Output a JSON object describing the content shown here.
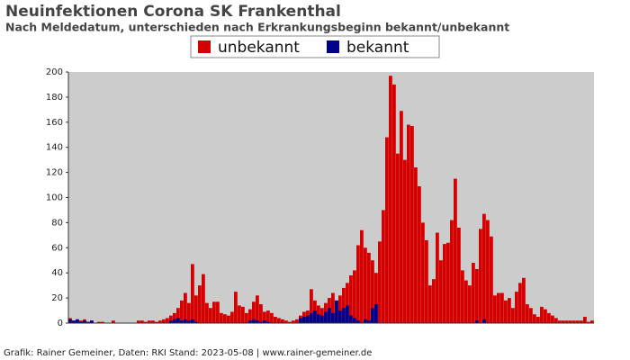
{
  "chart_data": {
    "type": "bar",
    "title": "Neuinfektionen Corona SK Frankenthal",
    "subtitle": "Nach Meldedatum, unterschieden nach Erkrankungsbeginn bekannt/unbekannt",
    "footer": "Grafik: Rainer Gemeiner, Daten: RKI Stand: 2023-05-08 | www.rainer-gemeiner.de",
    "legend": "top",
    "categories": [
      null,
      null,
      null,
      null,
      null,
      null,
      null,
      null,
      null,
      null,
      null,
      null,
      null,
      null,
      null,
      null,
      null,
      null,
      null,
      null,
      null,
      null,
      null,
      null,
      null,
      null,
      null,
      null,
      null,
      null,
      null,
      null,
      null,
      null,
      null,
      null,
      null,
      null,
      null,
      null,
      null,
      null,
      null,
      null,
      null,
      null,
      null,
      null,
      null,
      null,
      null,
      null,
      null,
      null,
      null,
      null,
      null,
      null,
      null,
      null,
      null,
      null,
      null,
      null,
      null,
      null,
      null,
      null,
      null,
      null,
      null,
      null,
      null,
      null,
      null,
      null,
      null,
      null,
      null,
      null,
      null,
      null,
      null,
      null,
      null,
      null,
      null,
      null,
      null,
      null,
      null,
      null,
      null,
      null,
      null,
      null,
      null,
      null,
      null,
      null,
      null,
      null,
      null,
      null,
      null,
      null,
      null,
      null,
      null,
      null,
      null,
      null,
      null,
      null,
      null,
      null,
      null,
      null,
      null,
      null,
      null,
      null,
      null,
      null,
      null,
      null,
      null,
      null,
      null,
      null,
      null,
      null,
      null,
      null,
      null,
      null,
      null,
      null,
      null,
      null,
      null,
      null,
      null,
      null,
      null,
      null
    ],
    "series": [
      {
        "name": "unbekannt",
        "color": "#d40000",
        "values": [
          4,
          2,
          3,
          2,
          3,
          1,
          2,
          0,
          1,
          1,
          0,
          0,
          2,
          0,
          0,
          0,
          0,
          0,
          0,
          2,
          2,
          1,
          2,
          2,
          1,
          2,
          3,
          4,
          6,
          8,
          12,
          18,
          24,
          16,
          47,
          22,
          30,
          39,
          16,
          12,
          17,
          17,
          8,
          7,
          6,
          9,
          25,
          14,
          13,
          8,
          11,
          17,
          22,
          15,
          9,
          10,
          8,
          5,
          4,
          3,
          2,
          1,
          2,
          3,
          6,
          9,
          10,
          27,
          18,
          14,
          12,
          16,
          20,
          24,
          18,
          22,
          28,
          32,
          38,
          42,
          62,
          74,
          60,
          56,
          50,
          40,
          65,
          90,
          148,
          197,
          190,
          135,
          169,
          130,
          158,
          157,
          124,
          109,
          80,
          66,
          30,
          35,
          72,
          50,
          63,
          64,
          82,
          115,
          76,
          42,
          34,
          30,
          48,
          43,
          75,
          87,
          82,
          69,
          22,
          24,
          24,
          18,
          20,
          12,
          25,
          32,
          36,
          15,
          12,
          7,
          5,
          13,
          11,
          8,
          6,
          4,
          2,
          2,
          2,
          2,
          2,
          2,
          2,
          5,
          1,
          2
        ]
      },
      {
        "name": "bekannt",
        "color": "#00008b",
        "values": [
          3,
          2,
          3,
          1,
          2,
          1,
          2,
          0,
          0,
          0,
          0,
          0,
          0,
          0,
          0,
          0,
          0,
          0,
          0,
          0,
          0,
          0,
          0,
          0,
          0,
          0,
          0,
          0,
          2,
          3,
          4,
          2,
          3,
          2,
          3,
          1,
          0,
          0,
          0,
          0,
          0,
          0,
          0,
          0,
          0,
          0,
          0,
          0,
          0,
          0,
          2,
          3,
          2,
          1,
          2,
          1,
          0,
          0,
          0,
          0,
          0,
          0,
          0,
          0,
          4,
          5,
          6,
          8,
          10,
          7,
          6,
          9,
          12,
          8,
          18,
          10,
          12,
          14,
          6,
          4,
          2,
          0,
          3,
          2,
          12,
          15,
          0,
          0,
          0,
          0,
          0,
          0,
          0,
          0,
          0,
          0,
          0,
          0,
          0,
          0,
          0,
          0,
          0,
          0,
          0,
          0,
          0,
          0,
          0,
          0,
          0,
          0,
          0,
          2,
          0,
          3,
          0,
          0,
          0,
          0,
          0,
          0,
          0,
          0,
          0,
          0,
          0,
          0,
          0,
          0,
          0,
          0,
          0,
          0,
          0,
          0,
          0,
          0,
          0,
          0,
          0,
          0,
          0,
          0,
          0,
          0
        ]
      }
    ],
    "ylim": [
      0,
      200
    ],
    "yticks": [
      0,
      20,
      40,
      60,
      80,
      100,
      120,
      140,
      160,
      180,
      200
    ],
    "plot_background": "#cccccc"
  }
}
